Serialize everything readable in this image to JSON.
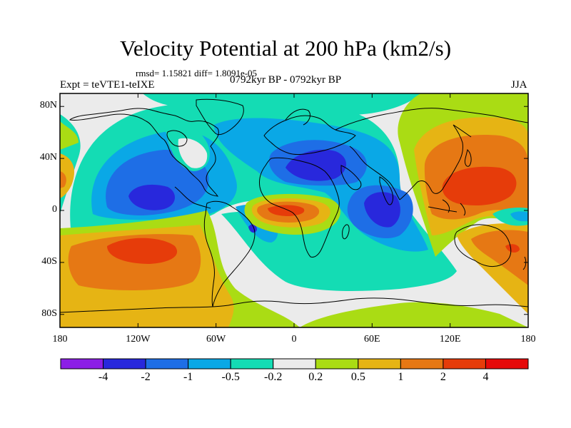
{
  "title": "Velocity Potential at 200 hPa (km2/s)",
  "stats_line": "rmsd= 1.15821 diff= 1.8091e-05",
  "experiment": "Expt = teVTE1-teIXE",
  "period": "0792kyr BP - 0792kyr BP",
  "season": "JJA",
  "lat_ticks": [
    {
      "label": "80N",
      "value": 80
    },
    {
      "label": "40N",
      "value": 40
    },
    {
      "label": "0",
      "value": 0
    },
    {
      "label": "40S",
      "value": -40
    },
    {
      "label": "80S",
      "value": -80
    }
  ],
  "lon_ticks": [
    {
      "label": "180",
      "value": -180
    },
    {
      "label": "120W",
      "value": -120
    },
    {
      "label": "60W",
      "value": -60
    },
    {
      "label": "0",
      "value": 0
    },
    {
      "label": "60E",
      "value": 60
    },
    {
      "label": "120E",
      "value": 120
    },
    {
      "label": "180",
      "value": 180
    }
  ],
  "colorbar": {
    "colors": [
      "#8c1ee6",
      "#2828dc",
      "#1e6ee6",
      "#0aa8e6",
      "#14dcb4",
      "#ebebeb",
      "#aadc14",
      "#e6b414",
      "#e67814",
      "#e63c0a",
      "#e60a0a"
    ],
    "labels": [
      "-4",
      "-2",
      "-1",
      "-0.5",
      "-0.2",
      "0.2",
      "0.5",
      "1",
      "2",
      "4"
    ]
  },
  "field_colors": {
    "neg3": "#2828dc",
    "neg2": "#1e6ee6",
    "neg1": "#0aa8e6",
    "neg0": "#14dcb4",
    "zero": "#ebebeb",
    "pos0": "#aadc14",
    "pos1": "#e6b414",
    "pos2": "#e67814",
    "pos3": "#e63c0a"
  }
}
